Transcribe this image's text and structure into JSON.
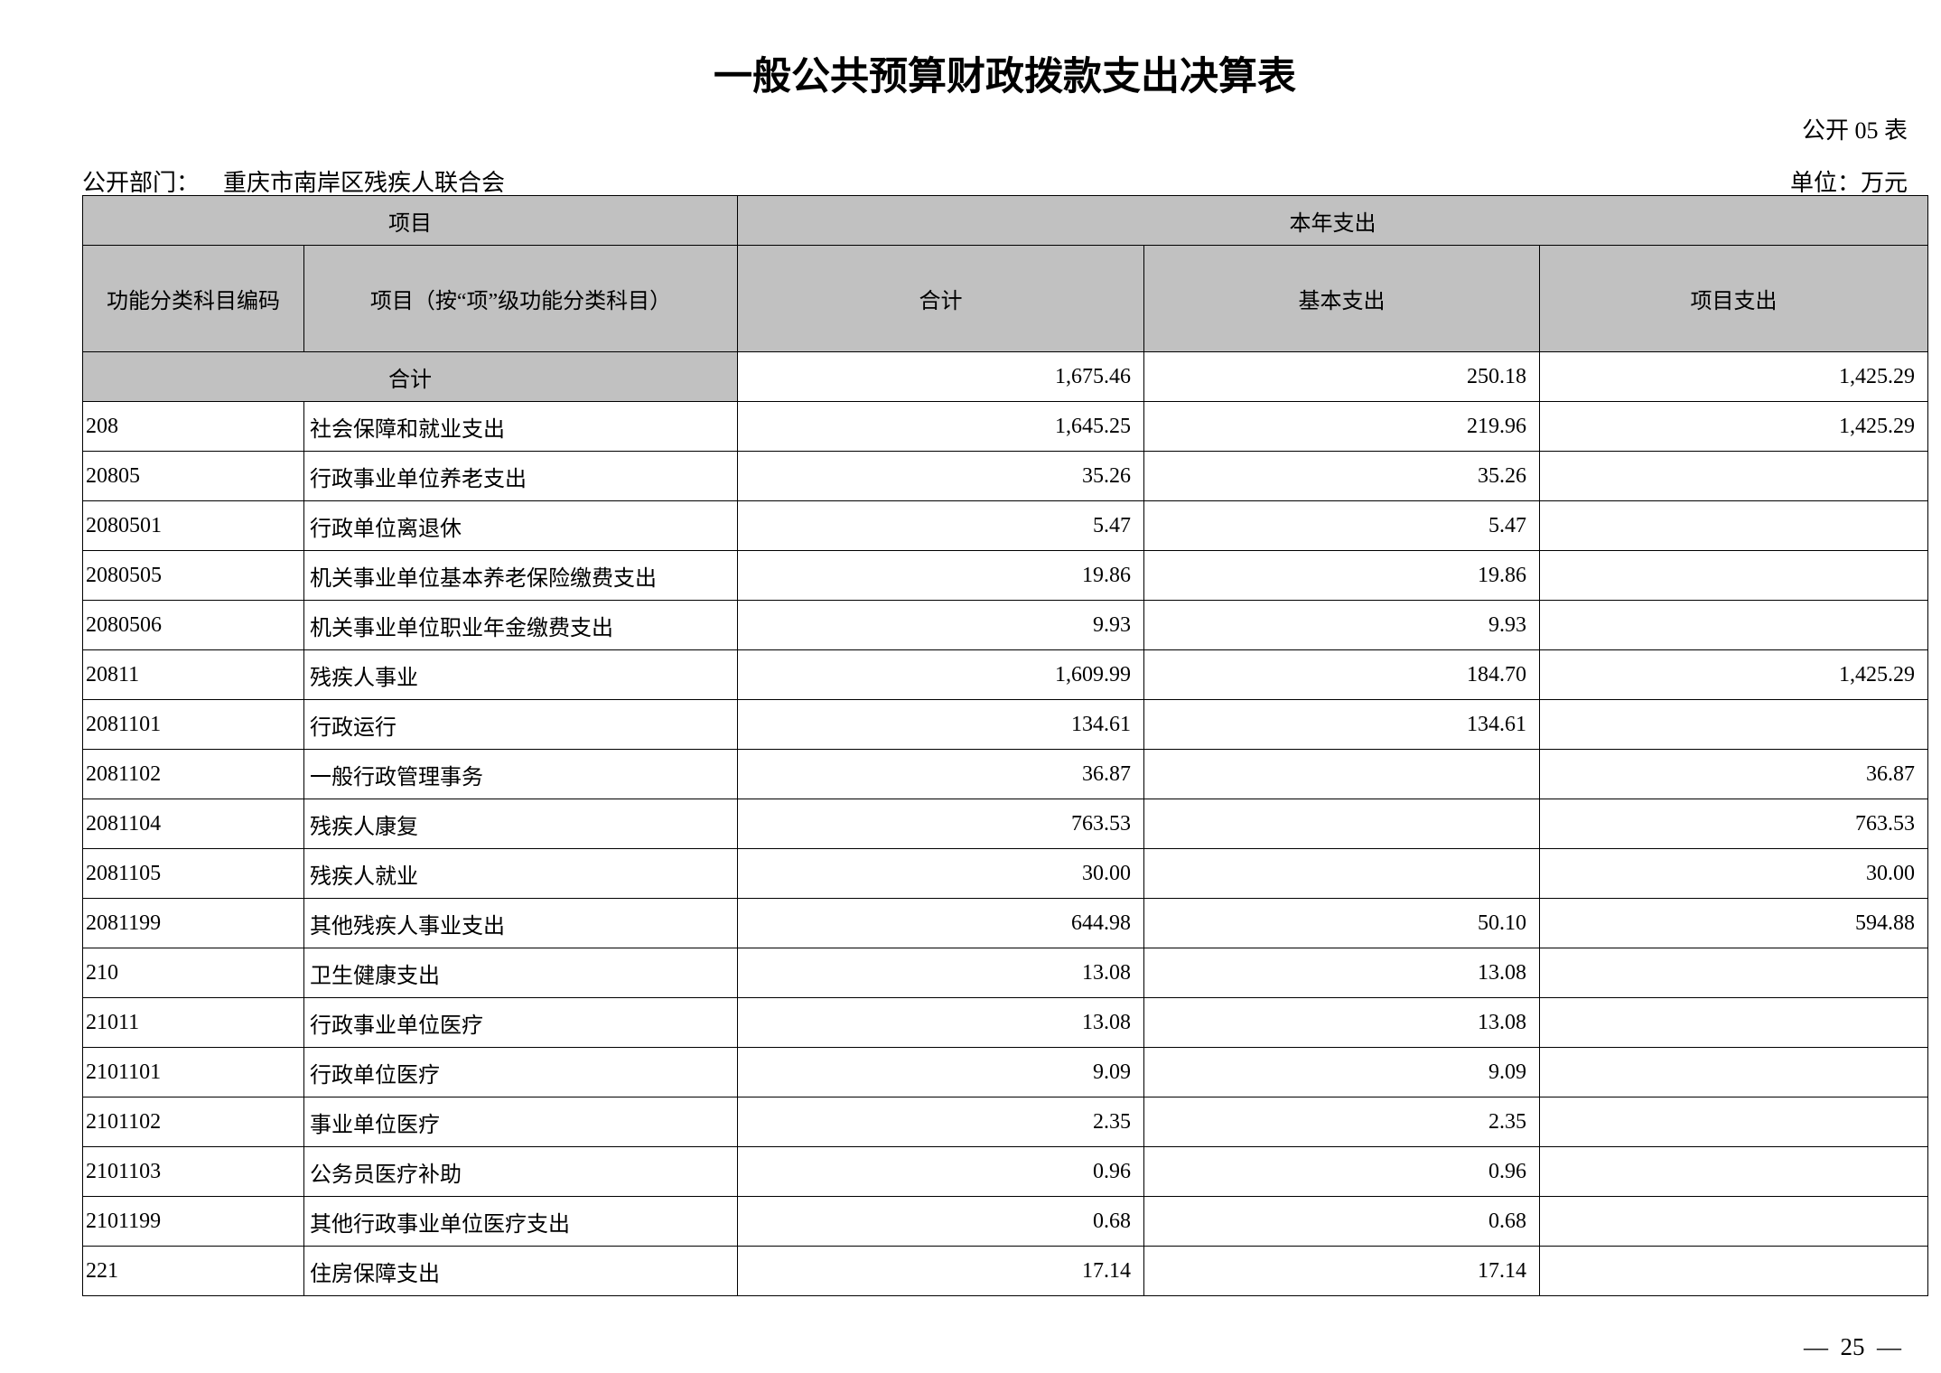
{
  "page": {
    "title": "一般公共预算财政拨款支出决算表",
    "table_code": "公开 05 表",
    "department_label": "公开部门：",
    "department_value": "重庆市南岸区残疾人联合会",
    "unit_label": "单位：万元",
    "page_number": "—  25  —"
  },
  "table": {
    "header": {
      "group_item": "项目",
      "group_current_year": "本年支出",
      "col_code": "功能分类科目编码",
      "col_item": "项目（按“项”级功能分类科目）",
      "col_total": "合计",
      "col_basic": "基本支出",
      "col_project": "项目支出"
    },
    "total_row": {
      "label": "合计",
      "total": "1,675.46",
      "basic": "250.18",
      "project": "1,425.29"
    },
    "rows": [
      {
        "code": "208",
        "name": "社会保障和就业支出",
        "total": "1,645.25",
        "basic": "219.96",
        "project": "1,425.29"
      },
      {
        "code": "20805",
        "name": "行政事业单位养老支出",
        "total": "35.26",
        "basic": "35.26",
        "project": ""
      },
      {
        "code": "2080501",
        "name": "行政单位离退休",
        "total": "5.47",
        "basic": "5.47",
        "project": ""
      },
      {
        "code": "2080505",
        "name": "机关事业单位基本养老保险缴费支出",
        "total": "19.86",
        "basic": "19.86",
        "project": ""
      },
      {
        "code": "2080506",
        "name": "机关事业单位职业年金缴费支出",
        "total": "9.93",
        "basic": "9.93",
        "project": ""
      },
      {
        "code": "20811",
        "name": "残疾人事业",
        "total": "1,609.99",
        "basic": "184.70",
        "project": "1,425.29"
      },
      {
        "code": "2081101",
        "name": "行政运行",
        "total": "134.61",
        "basic": "134.61",
        "project": ""
      },
      {
        "code": "2081102",
        "name": "一般行政管理事务",
        "total": "36.87",
        "basic": "",
        "project": "36.87"
      },
      {
        "code": "2081104",
        "name": "残疾人康复",
        "total": "763.53",
        "basic": "",
        "project": "763.53"
      },
      {
        "code": "2081105",
        "name": "残疾人就业",
        "total": "30.00",
        "basic": "",
        "project": "30.00"
      },
      {
        "code": "2081199",
        "name": "其他残疾人事业支出",
        "total": "644.98",
        "basic": "50.10",
        "project": "594.88"
      },
      {
        "code": "210",
        "name": "卫生健康支出",
        "total": "13.08",
        "basic": "13.08",
        "project": ""
      },
      {
        "code": "21011",
        "name": "行政事业单位医疗",
        "total": "13.08",
        "basic": "13.08",
        "project": ""
      },
      {
        "code": "2101101",
        "name": "行政单位医疗",
        "total": "9.09",
        "basic": "9.09",
        "project": ""
      },
      {
        "code": "2101102",
        "name": "事业单位医疗",
        "total": "2.35",
        "basic": "2.35",
        "project": ""
      },
      {
        "code": "2101103",
        "name": "公务员医疗补助",
        "total": "0.96",
        "basic": "0.96",
        "project": ""
      },
      {
        "code": "2101199",
        "name": "其他行政事业单位医疗支出",
        "total": "0.68",
        "basic": "0.68",
        "project": ""
      },
      {
        "code": "221",
        "name": "住房保障支出",
        "total": "17.14",
        "basic": "17.14",
        "project": ""
      }
    ],
    "colors": {
      "header_bg": "#c1c1c1",
      "border": "#000000"
    }
  }
}
